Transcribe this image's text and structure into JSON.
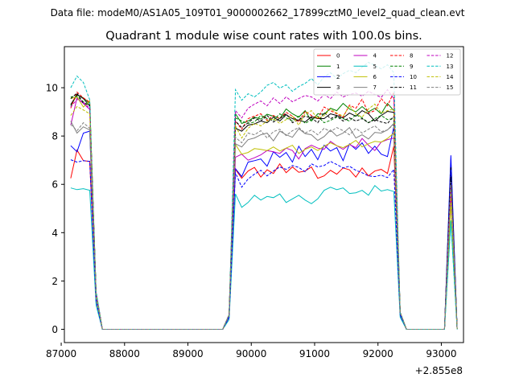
{
  "chart_data": {
    "type": "line",
    "suptitle": "Data file: modeM0/AS1A05_109T01_9000002662_17899cztM0_level2_quad_clean.evt",
    "title": "Quadrant 1 module wise count rates with 100.0s bins.",
    "xlabel": "",
    "ylabel": "",
    "x_offset_label": "+2.855e8",
    "x_tick_labels": [
      "87000",
      "88000",
      "89000",
      "90000",
      "91000",
      "92000",
      "93000"
    ],
    "y_tick_labels": [
      "0",
      "2",
      "4",
      "6",
      "8",
      "10"
    ],
    "xlim": [
      87050,
      93350
    ],
    "ylim": [
      -0.55,
      11.7
    ],
    "legend_position": "top-right",
    "legend_columns": 4,
    "grid": false,
    "segments": [
      {
        "x_start": 87150,
        "x_end": 87550
      },
      {
        "x_start": 87650,
        "x_end": 89550
      },
      {
        "x_start": 89650,
        "x_end": 92350
      },
      {
        "x_start": 92450,
        "x_end": 92950
      },
      {
        "x_start": 93050,
        "x_end": 93250
      }
    ],
    "series": [
      {
        "name": "0",
        "color": "#ff0000",
        "dash": "solid",
        "seg1": [
          6.25,
          7.42,
          6.98,
          6.95,
          1.2,
          0.0
        ],
        "seg3": [
          0.5,
          6.62,
          6.25,
          6.55,
          6.7,
          6.3,
          6.6,
          6.45,
          6.85,
          6.48,
          6.72,
          6.5,
          6.55,
          6.72,
          6.25,
          6.35,
          6.58,
          6.42,
          6.68,
          6.6,
          6.3,
          6.68,
          6.35,
          6.55,
          6.62,
          6.45,
          7.58,
          0.6
        ],
        "seg5": [
          0.0,
          5.5
        ]
      },
      {
        "name": "1",
        "color": "#008000",
        "dash": "solid",
        "seg1": [
          9.25,
          9.7,
          9.58,
          9.35,
          1.5,
          0.0
        ],
        "seg3": [
          0.6,
          8.92,
          8.52,
          8.62,
          8.78,
          8.7,
          8.9,
          8.82,
          8.72,
          9.12,
          8.92,
          8.78,
          9.05,
          8.62,
          8.92,
          8.9,
          9.15,
          9.05,
          9.35,
          9.12,
          9.0,
          9.22,
          9.0,
          9.15,
          8.92,
          9.35,
          9.05,
          0.7
        ],
        "seg5": [
          0.0,
          7.0
        ]
      },
      {
        "name": "2",
        "color": "#0000ff",
        "dash": "solid",
        "seg1": [
          7.6,
          7.35,
          8.12,
          8.2,
          1.3,
          0.0
        ],
        "seg3": [
          0.5,
          6.65,
          6.32,
          6.92,
          6.98,
          7.05,
          6.75,
          7.35,
          7.12,
          7.32,
          6.92,
          7.58,
          7.15,
          7.45,
          7.02,
          7.62,
          7.38,
          7.52,
          6.98,
          7.68,
          7.45,
          7.72,
          7.28,
          7.58,
          7.25,
          7.15,
          8.38,
          0.6
        ],
        "seg5": [
          0.0,
          7.2
        ]
      },
      {
        "name": "3",
        "color": "#000000",
        "dash": "solid",
        "seg1": [
          9.3,
          9.72,
          9.55,
          9.25,
          1.5,
          0.0
        ],
        "seg3": [
          0.6,
          8.32,
          8.2,
          8.45,
          8.5,
          8.62,
          8.55,
          8.78,
          8.62,
          8.88,
          8.72,
          8.65,
          8.58,
          8.8,
          8.72,
          8.72,
          8.92,
          8.85,
          8.75,
          8.95,
          8.82,
          9.05,
          8.92,
          8.62,
          8.85,
          9.02,
          8.98,
          0.7
        ],
        "seg5": [
          0.0,
          6.7
        ]
      },
      {
        "name": "4",
        "color": "#bf00bf",
        "dash": "solid",
        "seg1": [
          8.45,
          9.58,
          9.35,
          9.1,
          1.4,
          0.0
        ],
        "seg3": [
          0.6,
          7.12,
          7.25,
          7.0,
          7.1,
          7.22,
          7.4,
          7.35,
          7.28,
          7.5,
          7.4,
          7.05,
          7.48,
          7.62,
          7.5,
          7.45,
          7.78,
          7.6,
          7.45,
          7.65,
          7.52,
          7.9,
          7.62,
          7.4,
          7.75,
          7.85,
          7.92,
          0.7
        ],
        "seg5": [
          0.0,
          6.3
        ]
      },
      {
        "name": "5",
        "color": "#00bfbf",
        "dash": "solid",
        "seg1": [
          5.85,
          5.78,
          5.82,
          5.75,
          1.0,
          0.0
        ],
        "seg3": [
          0.4,
          5.6,
          5.05,
          5.25,
          5.55,
          5.35,
          5.5,
          5.45,
          5.6,
          5.25,
          5.4,
          5.55,
          5.35,
          5.2,
          5.4,
          5.75,
          5.88,
          5.78,
          5.85,
          5.62,
          5.65,
          5.75,
          5.55,
          5.95,
          5.72,
          5.78,
          5.7,
          0.5
        ],
        "seg5": [
          0.0,
          4.5
        ]
      },
      {
        "name": "6",
        "color": "#bfbf00",
        "dash": "solid",
        "seg1": [
          9.55,
          9.62,
          9.2,
          9.45,
          1.5,
          0.0
        ],
        "seg3": [
          0.6,
          7.65,
          7.25,
          7.32,
          7.48,
          7.45,
          7.4,
          7.55,
          7.38,
          7.5,
          7.62,
          7.28,
          7.45,
          7.55,
          7.4,
          7.58,
          7.72,
          7.6,
          7.52,
          7.65,
          7.82,
          7.55,
          7.68,
          7.78,
          7.75,
          7.9,
          8.12,
          0.7
        ],
        "seg5": [
          0.0,
          5.2
        ]
      },
      {
        "name": "7",
        "color": "#808080",
        "dash": "solid",
        "seg1": [
          8.62,
          8.12,
          8.38,
          8.25,
          1.3,
          0.0
        ],
        "seg3": [
          0.6,
          7.68,
          7.55,
          7.85,
          7.92,
          8.05,
          8.12,
          7.8,
          8.2,
          8.05,
          7.95,
          8.3,
          8.1,
          8.05,
          7.82,
          7.98,
          8.25,
          8.0,
          8.12,
          8.35,
          7.92,
          8.05,
          7.88,
          8.15,
          8.12,
          8.25,
          8.52,
          0.7
        ],
        "seg5": [
          0.0,
          6.0
        ]
      },
      {
        "name": "8",
        "color": "#ff0000",
        "dash": "dashed",
        "seg1": [
          9.15,
          9.82,
          9.58,
          9.4,
          1.5,
          0.0
        ],
        "seg3": [
          0.6,
          8.62,
          8.28,
          8.72,
          8.82,
          8.92,
          8.65,
          8.85,
          8.72,
          8.98,
          8.82,
          8.58,
          9.02,
          8.85,
          8.72,
          9.2,
          9.05,
          8.92,
          8.78,
          9.28,
          9.15,
          9.52,
          8.95,
          9.05,
          9.55,
          9.25,
          9.82,
          0.7
        ],
        "seg5": [
          0.0,
          6.2
        ]
      },
      {
        "name": "9",
        "color": "#008000",
        "dash": "dashed",
        "seg1": [
          9.62,
          9.65,
          9.42,
          9.25,
          1.5,
          0.0
        ],
        "seg3": [
          0.6,
          8.75,
          8.62,
          8.52,
          8.58,
          8.85,
          8.72,
          8.65,
          8.92,
          8.75,
          8.62,
          8.82,
          8.52,
          8.68,
          8.82,
          8.55,
          8.65,
          8.78,
          8.72,
          8.62,
          8.88,
          8.75,
          8.55,
          8.72,
          8.85,
          8.68,
          8.72,
          0.7
        ],
        "seg5": [
          0.0,
          6.6
        ]
      },
      {
        "name": "10",
        "color": "#0000ff",
        "dash": "dashed",
        "seg1": [
          7.02,
          6.92,
          6.98,
          6.95,
          1.2,
          0.0
        ],
        "seg3": [
          0.5,
          6.48,
          5.88,
          6.22,
          6.42,
          6.58,
          6.35,
          6.55,
          6.72,
          6.62,
          6.78,
          6.7,
          6.52,
          6.85,
          6.72,
          6.78,
          6.95,
          6.82,
          6.68,
          6.75,
          6.58,
          6.48,
          6.35,
          6.32,
          6.38,
          6.28,
          6.62,
          0.6
        ],
        "seg5": [
          0.0,
          6.6
        ]
      },
      {
        "name": "11",
        "color": "#000000",
        "dash": "dashed",
        "seg1": [
          9.55,
          9.78,
          9.35,
          9.28,
          1.5,
          0.0
        ],
        "seg3": [
          0.6,
          8.62,
          8.35,
          8.55,
          8.75,
          8.62,
          8.85,
          8.58,
          8.72,
          8.92,
          8.55,
          8.68,
          8.82,
          8.75,
          8.55,
          8.98,
          8.72,
          8.82,
          8.62,
          8.75,
          8.62,
          8.72,
          8.55,
          8.68,
          8.58,
          8.52,
          8.82,
          0.7
        ],
        "seg5": [
          0.0,
          6.3
        ]
      },
      {
        "name": "12",
        "color": "#bf00bf",
        "dash": "dashed",
        "seg1": [
          9.2,
          9.52,
          9.4,
          9.15,
          1.5,
          0.0
        ],
        "seg3": [
          0.6,
          9.05,
          8.75,
          9.15,
          9.32,
          9.45,
          9.25,
          9.58,
          9.35,
          9.62,
          9.42,
          9.55,
          9.68,
          9.62,
          9.45,
          9.72,
          9.55,
          9.82,
          9.62,
          9.72,
          9.78,
          9.65,
          9.85,
          9.72,
          9.6,
          9.92,
          9.55,
          0.7
        ],
        "seg5": [
          0.0,
          5.9
        ]
      },
      {
        "name": "13",
        "color": "#00bfbf",
        "dash": "dashed",
        "seg1": [
          10.0,
          10.48,
          10.22,
          9.5,
          1.6,
          0.0
        ],
        "seg3": [
          0.6,
          9.92,
          9.48,
          9.75,
          9.62,
          9.82,
          10.1,
          10.22,
          9.98,
          10.12,
          9.85,
          10.05,
          10.18,
          10.38,
          10.12,
          10.45,
          10.62,
          10.38,
          10.58,
          10.72,
          10.62,
          10.85,
          11.05,
          10.92,
          10.78,
          10.95,
          10.62,
          0.7
        ],
        "seg5": [
          0.0,
          4.5
        ]
      },
      {
        "name": "14",
        "color": "#bfbf00",
        "dash": "dashed",
        "seg1": [
          8.85,
          9.22,
          9.08,
          8.92,
          1.4,
          0.0
        ],
        "seg3": [
          0.6,
          8.42,
          7.92,
          8.32,
          8.52,
          8.42,
          8.62,
          8.72,
          8.52,
          8.68,
          8.82,
          8.45,
          8.92,
          9.05,
          8.72,
          8.85,
          9.12,
          8.95,
          8.82,
          9.25,
          8.92,
          8.78,
          9.12,
          9.32,
          8.95,
          9.05,
          9.12,
          0.7
        ],
        "seg5": [
          0.0,
          5.9
        ]
      },
      {
        "name": "15",
        "color": "#808080",
        "dash": "dashed",
        "seg1": [
          8.48,
          8.22,
          8.55,
          8.32,
          1.3,
          0.0
        ],
        "seg3": [
          0.6,
          7.95,
          7.72,
          8.12,
          8.05,
          8.22,
          7.92,
          8.18,
          8.28,
          8.02,
          8.22,
          8.35,
          8.12,
          8.25,
          8.05,
          8.32,
          8.18,
          8.35,
          8.22,
          8.05,
          8.32,
          8.12,
          8.28,
          8.42,
          8.18,
          8.25,
          8.48,
          0.7
        ],
        "seg5": [
          0.0,
          6.1
        ]
      }
    ]
  }
}
